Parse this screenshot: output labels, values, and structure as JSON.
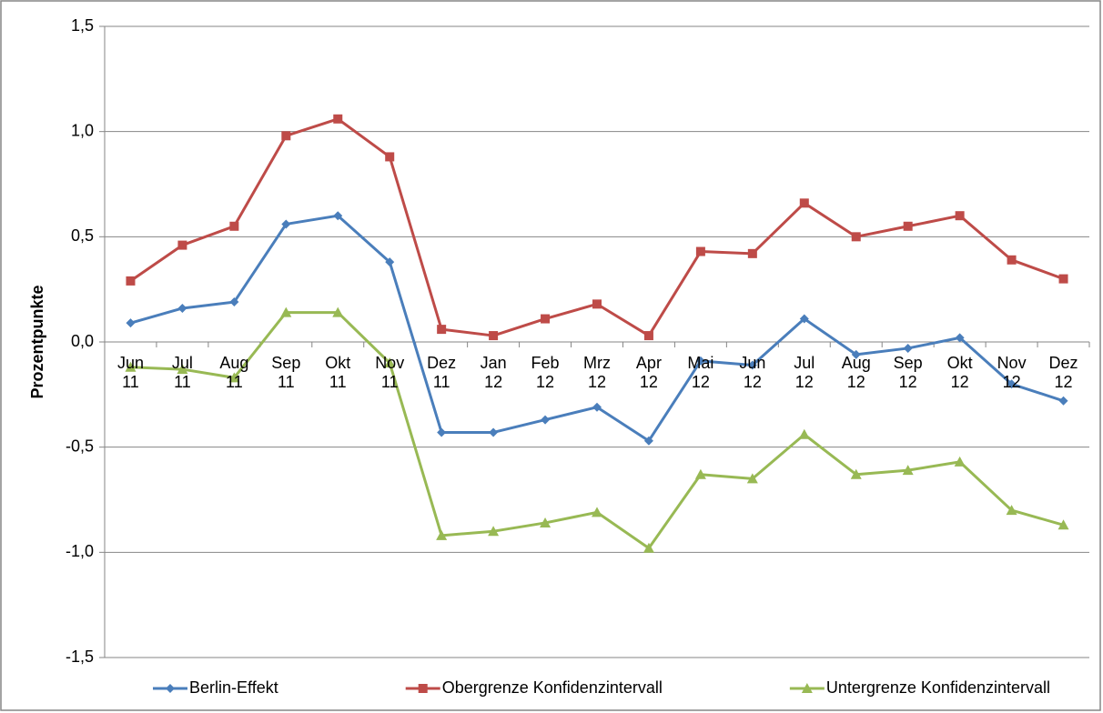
{
  "chart_data": {
    "type": "line",
    "y_label": "Prozentpunkte",
    "categories": [
      "Jun 11",
      "Jul 11",
      "Aug 11",
      "Sep 11",
      "Okt 11",
      "Nov 11",
      "Dez 11",
      "Jan 12",
      "Feb 12",
      "Mrz 12",
      "Apr 12",
      "Mai 12",
      "Jun 12",
      "Jul 12",
      "Aug 12",
      "Sep 12",
      "Okt 12",
      "Nov 12",
      "Dez 12"
    ],
    "series": [
      {
        "name": "Berlin-Effekt",
        "color": "#4a7ebb",
        "marker": "diamond",
        "values": [
          0.09,
          0.16,
          0.19,
          0.56,
          0.6,
          0.38,
          -0.43,
          -0.43,
          -0.37,
          -0.31,
          -0.47,
          -0.09,
          -0.11,
          0.11,
          -0.06,
          -0.03,
          0.02,
          -0.2,
          -0.28
        ]
      },
      {
        "name": "Obergrenze Konfidenzintervall",
        "color": "#be4b48",
        "marker": "square",
        "values": [
          0.29,
          0.46,
          0.55,
          0.98,
          1.06,
          0.88,
          0.06,
          0.03,
          0.11,
          0.18,
          0.03,
          0.43,
          0.42,
          0.66,
          0.5,
          0.55,
          0.6,
          0.39,
          0.3
        ]
      },
      {
        "name": "Untergrenze Konfidenzintervall",
        "color": "#98b954",
        "marker": "triangle",
        "values": [
          -0.12,
          -0.13,
          -0.17,
          0.14,
          0.14,
          -0.1,
          -0.92,
          -0.9,
          -0.86,
          -0.81,
          -0.98,
          -0.63,
          -0.65,
          -0.44,
          -0.63,
          -0.61,
          -0.57,
          -0.8,
          -0.87
        ]
      }
    ],
    "ylim": [
      -1.5,
      1.5
    ],
    "yticks": [
      {
        "value": -1.5,
        "label": "-1,5"
      },
      {
        "value": -1.0,
        "label": "-1,0"
      },
      {
        "value": -0.5,
        "label": "-0,5"
      },
      {
        "value": 0,
        "label": "0,0"
      },
      {
        "value": 0.5,
        "label": "0,5"
      },
      {
        "value": 1.0,
        "label": "1,0"
      },
      {
        "value": 1.5,
        "label": "1,5"
      }
    ],
    "grid": true,
    "legend": "bottom"
  }
}
